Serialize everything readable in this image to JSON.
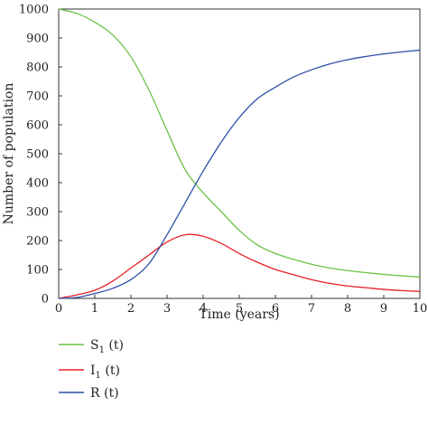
{
  "chart_data": {
    "type": "line",
    "xlabel": "Time (years)",
    "ylabel": "Number of population",
    "xlim": [
      0,
      10
    ],
    "ylim": [
      0,
      1000
    ],
    "x_ticks": [
      0,
      1,
      2,
      3,
      4,
      5,
      6,
      7,
      8,
      9,
      10
    ],
    "y_ticks": [
      0,
      100,
      200,
      300,
      400,
      500,
      600,
      700,
      800,
      900,
      1000
    ],
    "grid": false,
    "legend_position": "bottom-left",
    "x": [
      0,
      0.5,
      1,
      1.5,
      2,
      2.5,
      3,
      3.5,
      4,
      4.5,
      5,
      5.5,
      6,
      6.5,
      7,
      7.5,
      8,
      8.5,
      9,
      9.5,
      10
    ],
    "series": [
      {
        "label_main": "S",
        "label_sub": "1",
        "label_tail": " (t)",
        "color": "#6ac244",
        "values": [
          1000,
          985,
          955,
          910,
          835,
          720,
          580,
          445,
          365,
          300,
          235,
          185,
          155,
          135,
          118,
          105,
          96,
          89,
          83,
          78,
          74
        ]
      },
      {
        "label_main": "I",
        "label_sub": "1",
        "label_tail": " (t)",
        "color": "#e62028",
        "values": [
          0,
          12,
          28,
          60,
          105,
          150,
          195,
          220,
          215,
          190,
          155,
          125,
          100,
          82,
          65,
          52,
          43,
          37,
          31,
          27,
          24
        ]
      },
      {
        "label_main": "R",
        "label_sub": "",
        "label_tail": " (t)",
        "color": "#2c4fa6",
        "values": [
          0,
          3,
          17,
          35,
          65,
          120,
          220,
          330,
          440,
          540,
          625,
          690,
          730,
          765,
          790,
          810,
          825,
          836,
          845,
          852,
          858
        ]
      }
    ]
  }
}
